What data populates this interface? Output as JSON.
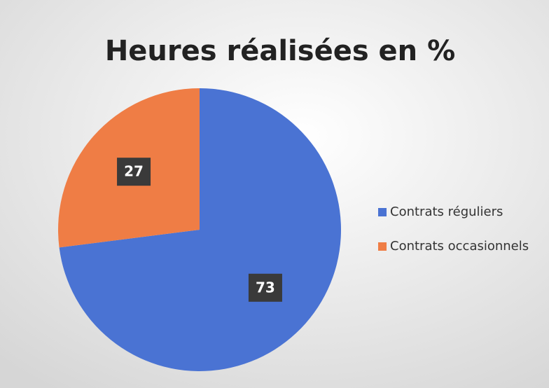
{
  "chart_data": {
    "type": "pie",
    "title": "Heures réalisées en %",
    "categories": [
      "Contrats réguliers",
      "Contrats occasionnels"
    ],
    "values": [
      73,
      27
    ],
    "colors": [
      "#4a73d3",
      "#ef7d45"
    ],
    "legend": "right"
  }
}
